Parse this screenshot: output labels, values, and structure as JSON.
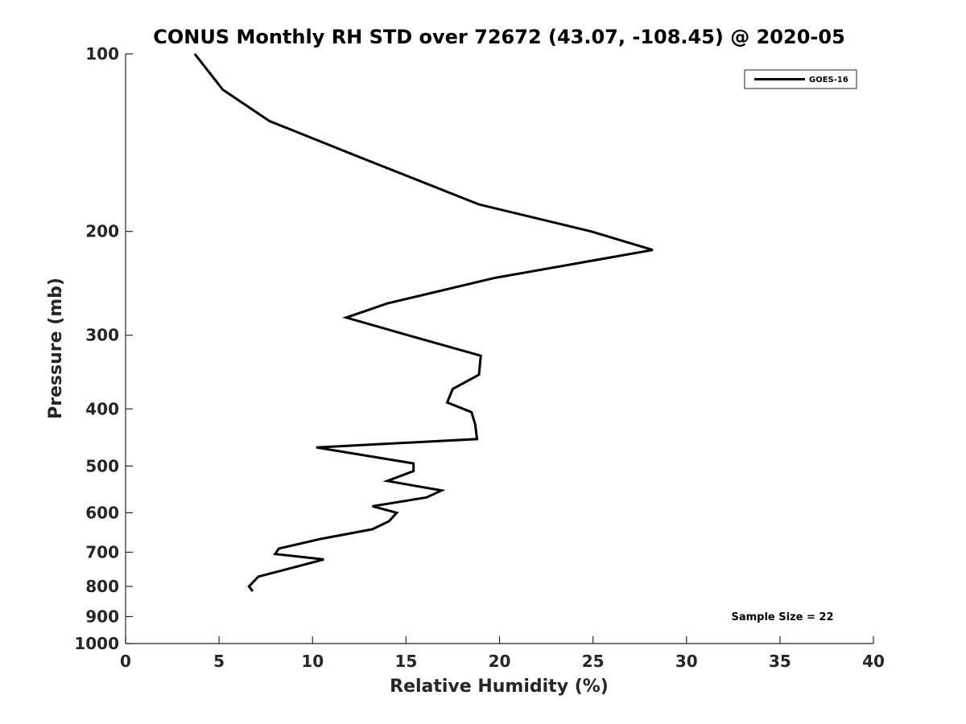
{
  "chart_data": {
    "type": "line",
    "title": "CONUS Monthly RH STD over 72672 (43.07, -108.45) @ 2020-05",
    "xlabel": "Relative Humidity (%)",
    "ylabel": "Pressure (mb)",
    "xlim": [
      0,
      40
    ],
    "ylim": [
      100,
      1000
    ],
    "yscale": "log",
    "y_reversed": true,
    "x_ticks": [
      0,
      5,
      10,
      15,
      20,
      25,
      30,
      35,
      40
    ],
    "y_ticks": [
      100,
      200,
      300,
      400,
      500,
      600,
      700,
      800,
      900,
      1000
    ],
    "grid": false,
    "legend_position": "top-right",
    "series": [
      {
        "name": "GOES-16",
        "color": "#000000",
        "x": [
          3.7,
          5.2,
          7.7,
          12.6,
          18.9,
          24.9,
          28.2,
          19.7,
          14.0,
          11.8,
          15.1,
          19.0,
          18.9,
          17.5,
          17.2,
          18.5,
          18.7,
          18.8,
          10.2,
          15.4,
          15.4,
          14.0,
          16.9,
          16.1,
          13.2,
          14.5,
          14.1,
          13.2,
          10.4,
          8.2,
          8.0,
          10.6,
          9.2,
          7.1,
          6.6,
          6.8
        ],
        "y": [
          100,
          115,
          130,
          150,
          180,
          200,
          215,
          240,
          265,
          280,
          300,
          325,
          350,
          370,
          390,
          405,
          425,
          450,
          465,
          495,
          510,
          530,
          550,
          565,
          585,
          600,
          620,
          640,
          665,
          690,
          705,
          720,
          740,
          770,
          800,
          815
        ]
      }
    ],
    "annotation": "Sample Size = 22"
  }
}
